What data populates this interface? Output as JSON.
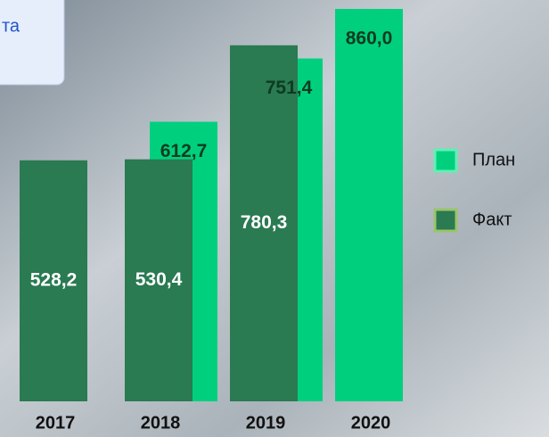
{
  "chart_data": {
    "type": "bar",
    "title": "та",
    "categories": [
      "2017",
      "2018",
      "2019",
      "2020"
    ],
    "series": [
      {
        "name": "План",
        "color": "#00d07e",
        "values": [
          null,
          612.7,
          751.4,
          860.0
        ],
        "value_labels": [
          null,
          "612,7",
          "751,4",
          "860,0"
        ]
      },
      {
        "name": "Факт",
        "color": "#2a7a52",
        "values": [
          528.2,
          530.4,
          780.3,
          null
        ],
        "value_labels": [
          "528,2",
          "530,4",
          "780,3",
          null
        ]
      }
    ]
  }
}
